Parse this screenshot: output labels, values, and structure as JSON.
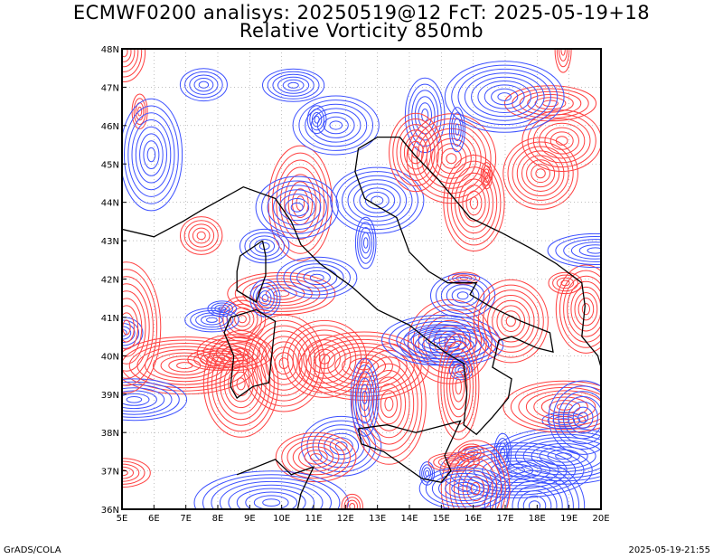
{
  "title": {
    "line1": "ECMWF0200 analisys: 20250519@12 FcT: 2025-05-19+18",
    "line2": "Relative Vorticity 850mb"
  },
  "footer": {
    "left": "GrADS/COLA",
    "right": "2025-05-19-21:55"
  },
  "map": {
    "lon_range": [
      5,
      20
    ],
    "lat_range": [
      36,
      48
    ],
    "lon_ticks": [
      "5E",
      "6E",
      "7E",
      "8E",
      "9E",
      "10E",
      "11E",
      "12E",
      "13E",
      "14E",
      "15E",
      "16E",
      "17E",
      "18E",
      "19E",
      "20E"
    ],
    "lat_ticks": [
      "36N",
      "37N",
      "38N",
      "39N",
      "40N",
      "41N",
      "42N",
      "43N",
      "44N",
      "45N",
      "46N",
      "47N",
      "48N"
    ],
    "positive_color": "#ff4040",
    "negative_color": "#3c50ff",
    "coastline_color": "#000000",
    "icons": [
      "contour-field",
      "coastline"
    ]
  }
}
